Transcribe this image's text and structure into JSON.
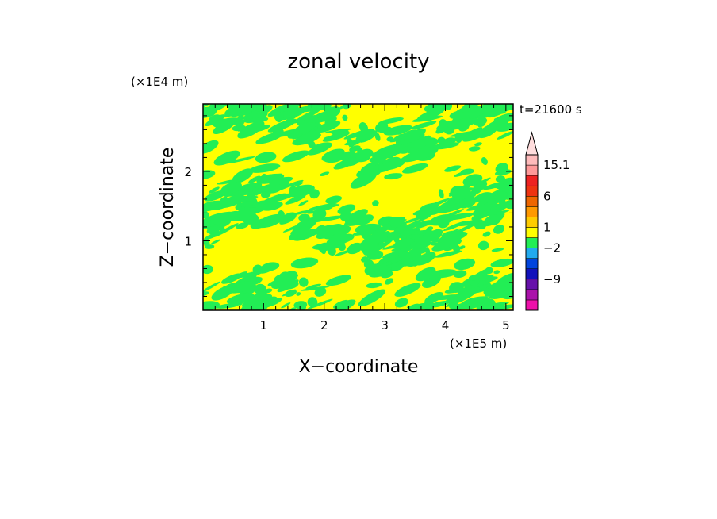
{
  "chart_data": {
    "type": "heatmap",
    "title": "zonal velocity",
    "xlabel": "X−coordinate",
    "ylabel": "Z−coordinate",
    "x_unit": "(×1E5 m)",
    "y_unit": "(×1E4 m)",
    "time_label": "t=21600 s",
    "xlim": [
      0,
      5.12
    ],
    "ylim": [
      0,
      2.97
    ],
    "x_ticks": [
      {
        "value": 1,
        "label": "1"
      },
      {
        "value": 2,
        "label": "2"
      },
      {
        "value": 3,
        "label": "3"
      },
      {
        "value": 4,
        "label": "4"
      },
      {
        "value": 5,
        "label": "5"
      }
    ],
    "y_ticks": [
      {
        "value": 1,
        "label": "1"
      },
      {
        "value": 2,
        "label": "2"
      }
    ],
    "field_colors": {
      "positive_small": "#ffff00",
      "negative_small": "#22ee55"
    },
    "colorbar": {
      "levels_bottom_to_top": [
        {
          "color": "#ee11aa"
        },
        {
          "color": "#aa11aa"
        },
        {
          "color": "#6611aa"
        },
        {
          "color": "#1111bb"
        },
        {
          "color": "#0044dd"
        },
        {
          "color": "#22aaee"
        },
        {
          "color": "#22ee55"
        },
        {
          "color": "#ffff00"
        },
        {
          "color": "#ffcc00"
        },
        {
          "color": "#ff9900"
        },
        {
          "color": "#ee6600"
        },
        {
          "color": "#ee3311"
        },
        {
          "color": "#ee2222"
        },
        {
          "color": "#ff9999"
        },
        {
          "color": "#ffbbbb"
        }
      ],
      "labels": [
        {
          "value": "15.1",
          "level": 14
        },
        {
          "value": "6",
          "level": 11
        },
        {
          "value": "1",
          "level": 8
        },
        {
          "value": "−2",
          "level": 6
        },
        {
          "value": "−9",
          "level": 3
        }
      ],
      "extend_max": true
    }
  }
}
